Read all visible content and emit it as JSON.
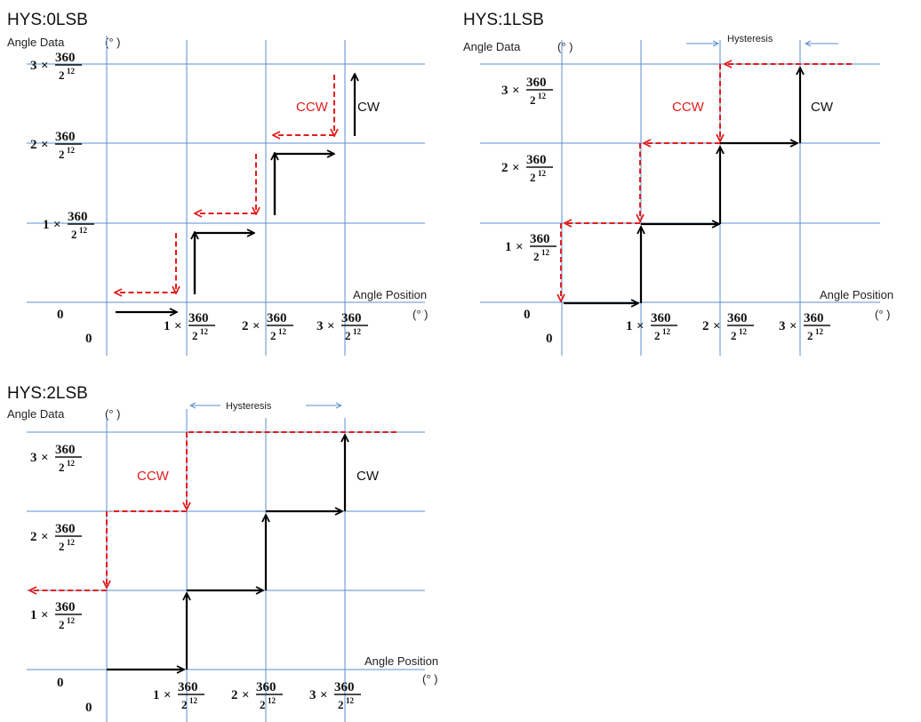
{
  "labels": {
    "y_axis": "Angle Data",
    "x_axis": "Angle Position",
    "unit": "(° )",
    "zero": "0",
    "cw": "CW",
    "ccw": "CCW",
    "hysteresis": "Hysteresis",
    "fraction": {
      "num": "360",
      "den": "2",
      "exp": "12",
      "times": "×"
    },
    "multipliers": [
      "1",
      "2",
      "3"
    ]
  },
  "panels": [
    {
      "id": "hys0",
      "title": "HYS:0LSB",
      "hysteresis_lsb": 0
    },
    {
      "id": "hys1",
      "title": "HYS:1LSB",
      "hysteresis_lsb": 1
    },
    {
      "id": "hys2",
      "title": "HYS:2LSB",
      "hysteresis_lsb": 2
    }
  ],
  "colors": {
    "grid": "#5b8fcf",
    "cw": "#000000",
    "ccw": "#e31b1b"
  }
}
